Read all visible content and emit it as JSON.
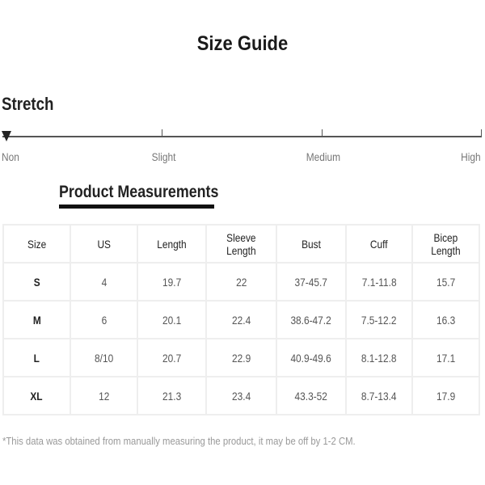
{
  "title": "Size Guide",
  "stretch": {
    "label": "Stretch",
    "levels": [
      "Non",
      "Slight",
      "Medium",
      "High"
    ],
    "selected": "Non"
  },
  "measurements_title": "Product Measurements",
  "table": {
    "headers": [
      "Size",
      "US",
      "Length",
      "Sleeve Length",
      "Bust",
      "Cuff",
      "Bicep Length"
    ],
    "rows": [
      [
        "S",
        "4",
        "19.7",
        "22",
        "37-45.7",
        "7.1-11.8",
        "15.7"
      ],
      [
        "M",
        "6",
        "20.1",
        "22.4",
        "38.6-47.2",
        "7.5-12.2",
        "16.3"
      ],
      [
        "L",
        "8/10",
        "20.7",
        "22.9",
        "40.9-49.6",
        "8.1-12.8",
        "17.1"
      ],
      [
        "XL",
        "12",
        "21.3",
        "23.4",
        "43.3-52",
        "8.7-13.4",
        "17.9"
      ]
    ]
  },
  "note": "*This data was obtained from manually measuring the product, it may be off by 1-2 CM."
}
